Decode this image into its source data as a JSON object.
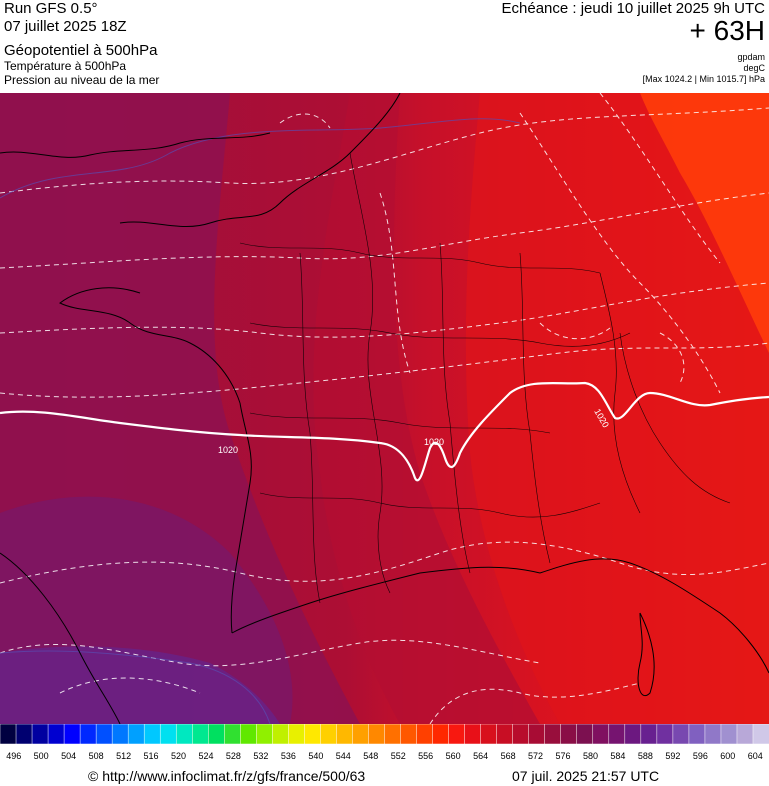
{
  "header": {
    "run": "Run GFS 0.5°",
    "run_date": "07 juillet 2025 18Z",
    "field1": "Géopotentiel à 500hPa",
    "field2": "Température à 500hPa",
    "field3": "Pression au niveau de la mer",
    "echeance": "Echéance : jeudi 10 juillet 2025 9h UTC",
    "hour": "+ 63H",
    "unit1": "gpdam",
    "unit2": "degC",
    "minmax": "[Max 1024.2 | Min 1015.7] hPa"
  },
  "map": {
    "isobar_labels": [
      "1020",
      "1020",
      "1020"
    ],
    "colors": {
      "purple": "#6b1f82",
      "magenta": "#8a1248",
      "crimson": "#a8103c",
      "red1": "#c8102a",
      "red2": "#de1218",
      "red3": "#f0200c",
      "orange": "#ff3c0a"
    }
  },
  "legend": {
    "values": [
      "496",
      "500",
      "504",
      "508",
      "512",
      "516",
      "520",
      "524",
      "528",
      "532",
      "536",
      "540",
      "544",
      "548",
      "552",
      "556",
      "560",
      "564",
      "568",
      "572",
      "576",
      "580",
      "584",
      "588",
      "592",
      "596",
      "600",
      "604"
    ],
    "colors": [
      "#000040",
      "#000070",
      "#0000a0",
      "#0000d0",
      "#0000ff",
      "#0028ff",
      "#0050ff",
      "#0078ff",
      "#00a0ff",
      "#00c8ff",
      "#00e0f0",
      "#00e8c0",
      "#00e890",
      "#00e060",
      "#30e030",
      "#60e800",
      "#90f000",
      "#c0f000",
      "#e8f000",
      "#ffe800",
      "#ffd000",
      "#ffb800",
      "#ffa000",
      "#ff8800",
      "#ff7000",
      "#ff5800",
      "#ff4000",
      "#ff2800",
      "#f81810",
      "#e81018",
      "#d8101c",
      "#c80e24",
      "#b80c2c",
      "#a80c34",
      "#980e3c",
      "#8a0e46",
      "#7c1050",
      "#801060",
      "#761470",
      "#6c1880",
      "#682090",
      "#7030a0",
      "#7848b0",
      "#8060c0",
      "#9078c8",
      "#a090d0",
      "#b8a8d8",
      "#d0c8e8"
    ]
  },
  "footer": {
    "url": "© http://www.infoclimat.fr/z/gfs/france/500/63",
    "date": "07 juil. 2025 21:57 UTC"
  }
}
